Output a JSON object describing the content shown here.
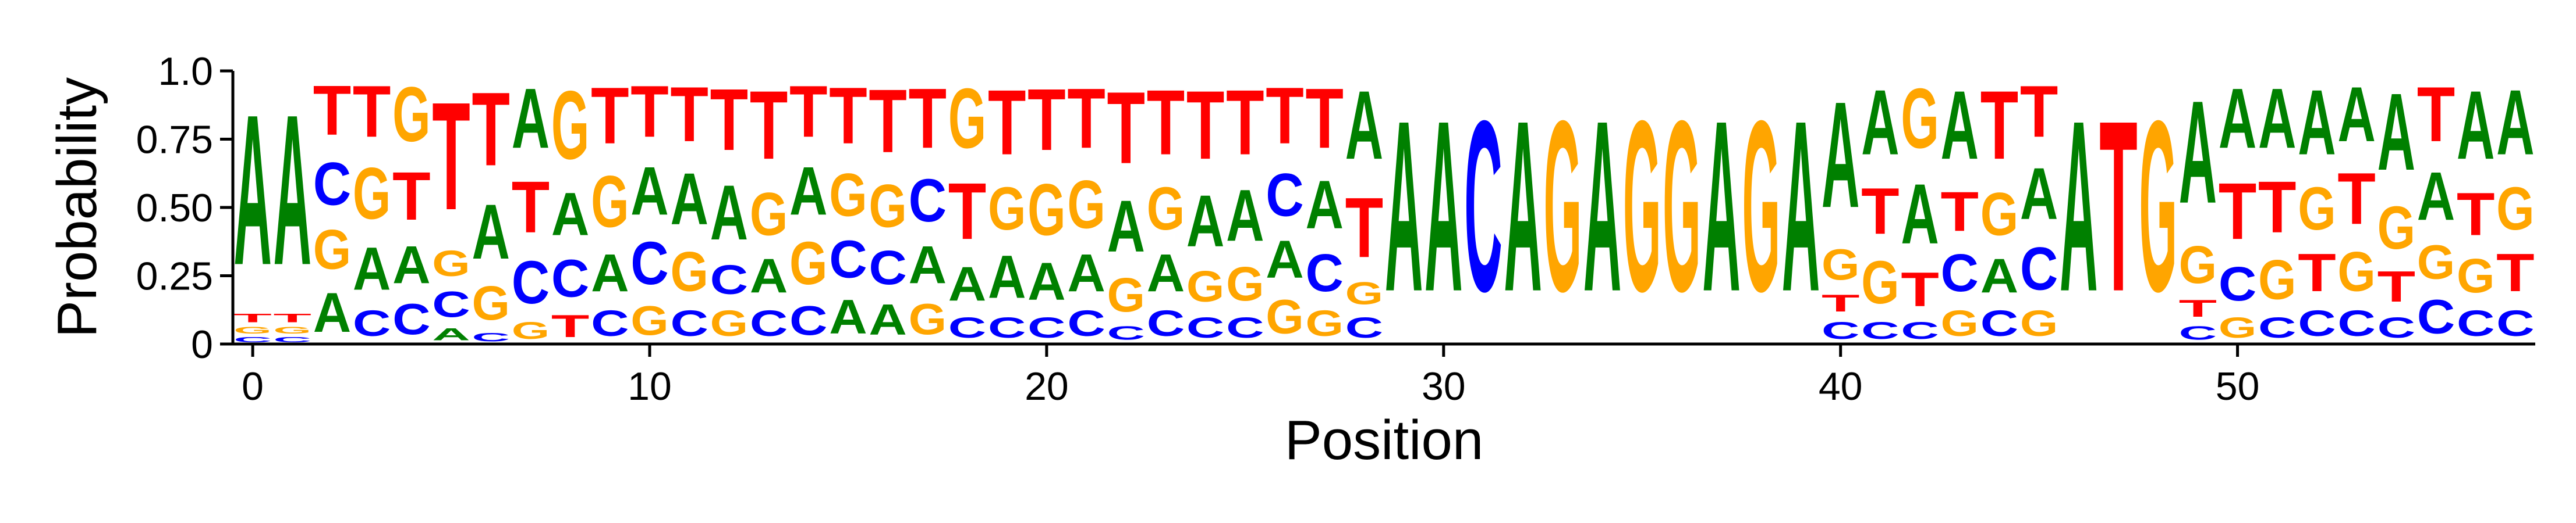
{
  "chart_data": {
    "type": "sequence-logo",
    "xlabel": "Position",
    "ylabel": "Probability",
    "xlim": [
      -0.5,
      57.5
    ],
    "ylim": [
      0,
      1
    ],
    "x_ticks": [
      0,
      10,
      20,
      30,
      40,
      50
    ],
    "x_tick_labels": [
      "0",
      "10",
      "20",
      "30",
      "40",
      "50"
    ],
    "y_ticks": [
      0,
      0.25,
      0.5,
      0.75,
      1.0
    ],
    "y_tick_labels": [
      "0",
      "0.25",
      "0.50",
      "0.75",
      "1.0"
    ],
    "grid": false,
    "colors": {
      "A": "#008000",
      "C": "#0000ff",
      "G": "#ffa500",
      "T": "#ff0000"
    },
    "alphabet": [
      "A",
      "C",
      "G",
      "T"
    ],
    "positions": [
      {
        "x": 0,
        "A": 0.88,
        "C": 0.03,
        "G": 0.04,
        "T": 0.05
      },
      {
        "x": 1,
        "A": 0.88,
        "C": 0.03,
        "G": 0.04,
        "T": 0.05
      },
      {
        "x": 2,
        "A": 0.23,
        "C": 0.25,
        "G": 0.23,
        "T": 0.29
      },
      {
        "x": 3,
        "A": 0.25,
        "C": 0.15,
        "G": 0.3,
        "T": 0.3
      },
      {
        "x": 4,
        "A": 0.22,
        "C": 0.18,
        "G": 0.32,
        "T": 0.28
      },
      {
        "x": 5,
        "A": 0.07,
        "C": 0.15,
        "G": 0.15,
        "T": 0.63
      },
      {
        "x": 6,
        "A": 0.32,
        "C": 0.05,
        "G": 0.2,
        "T": 0.43
      },
      {
        "x": 7,
        "A": 0.35,
        "C": 0.25,
        "G": 0.1,
        "T": 0.3
      },
      {
        "x": 8,
        "A": 0.25,
        "C": 0.22,
        "G": 0.4,
        "T": 0.13
      },
      {
        "x": 9,
        "A": 0.22,
        "C": 0.15,
        "G": 0.3,
        "T": 0.33
      },
      {
        "x": 10,
        "A": 0.28,
        "C": 0.25,
        "G": 0.17,
        "T": 0.3
      },
      {
        "x": 11,
        "A": 0.3,
        "C": 0.15,
        "G": 0.23,
        "T": 0.32
      },
      {
        "x": 12,
        "A": 0.32,
        "C": 0.17,
        "G": 0.15,
        "T": 0.36
      },
      {
        "x": 13,
        "A": 0.2,
        "C": 0.15,
        "G": 0.25,
        "T": 0.4
      },
      {
        "x": 14,
        "A": 0.28,
        "C": 0.17,
        "G": 0.25,
        "T": 0.3
      },
      {
        "x": 15,
        "A": 0.2,
        "C": 0.22,
        "G": 0.25,
        "T": 0.33
      },
      {
        "x": 16,
        "A": 0.18,
        "C": 0.2,
        "G": 0.25,
        "T": 0.37
      },
      {
        "x": 17,
        "A": 0.22,
        "C": 0.25,
        "G": 0.18,
        "T": 0.35
      },
      {
        "x": 18,
        "A": 0.2,
        "C": 0.12,
        "G": 0.35,
        "T": 0.33
      },
      {
        "x": 19,
        "A": 0.25,
        "C": 0.12,
        "G": 0.25,
        "T": 0.38
      },
      {
        "x": 20,
        "A": 0.22,
        "C": 0.12,
        "G": 0.3,
        "T": 0.36
      },
      {
        "x": 21,
        "A": 0.22,
        "C": 0.15,
        "G": 0.28,
        "T": 0.35
      },
      {
        "x": 22,
        "A": 0.3,
        "C": 0.08,
        "G": 0.2,
        "T": 0.42
      },
      {
        "x": 23,
        "A": 0.22,
        "C": 0.15,
        "G": 0.25,
        "T": 0.38
      },
      {
        "x": 24,
        "A": 0.3,
        "C": 0.12,
        "G": 0.18,
        "T": 0.4
      },
      {
        "x": 25,
        "A": 0.3,
        "C": 0.12,
        "G": 0.2,
        "T": 0.38
      },
      {
        "x": 26,
        "A": 0.22,
        "C": 0.25,
        "G": 0.2,
        "T": 0.33
      },
      {
        "x": 27,
        "A": 0.28,
        "C": 0.22,
        "G": 0.15,
        "T": 0.35
      },
      {
        "x": 28,
        "A": 0.4,
        "C": 0.12,
        "G": 0.13,
        "T": 0.35
      },
      {
        "x": 29,
        "A": 1.0,
        "C": 0.0,
        "G": 0.0,
        "T": 0.0
      },
      {
        "x": 30,
        "A": 1.0,
        "C": 0.0,
        "G": 0.0,
        "T": 0.0
      },
      {
        "x": 31,
        "A": 0.0,
        "C": 1.0,
        "G": 0.0,
        "T": 0.0
      },
      {
        "x": 32,
        "A": 1.0,
        "C": 0.0,
        "G": 0.0,
        "T": 0.0
      },
      {
        "x": 33,
        "A": 0.0,
        "C": 0.0,
        "G": 1.0,
        "T": 0.0
      },
      {
        "x": 34,
        "A": 1.0,
        "C": 0.0,
        "G": 0.0,
        "T": 0.0
      },
      {
        "x": 35,
        "A": 0.0,
        "C": 0.0,
        "G": 1.0,
        "T": 0.0
      },
      {
        "x": 36,
        "A": 0.0,
        "C": 0.0,
        "G": 1.0,
        "T": 0.0
      },
      {
        "x": 37,
        "A": 1.0,
        "C": 0.0,
        "G": 0.0,
        "T": 0.0
      },
      {
        "x": 38,
        "A": 0.0,
        "C": 0.0,
        "G": 1.0,
        "T": 0.0
      },
      {
        "x": 39,
        "A": 1.0,
        "C": 0.0,
        "G": 0.0,
        "T": 0.0
      },
      {
        "x": 40,
        "A": 0.62,
        "C": 0.1,
        "G": 0.18,
        "T": 0.1
      },
      {
        "x": 41,
        "A": 0.38,
        "C": 0.1,
        "G": 0.25,
        "T": 0.27
      },
      {
        "x": 42,
        "A": 0.35,
        "C": 0.1,
        "G": 0.35,
        "T": 0.2
      },
      {
        "x": 43,
        "A": 0.4,
        "C": 0.22,
        "G": 0.15,
        "T": 0.23
      },
      {
        "x": 44,
        "A": 0.2,
        "C": 0.15,
        "G": 0.25,
        "T": 0.4
      },
      {
        "x": 45,
        "A": 0.3,
        "C": 0.25,
        "G": 0.15,
        "T": 0.3
      },
      {
        "x": 46,
        "A": 1.0,
        "C": 0.0,
        "G": 0.0,
        "T": 0.0
      },
      {
        "x": 47,
        "A": 0.0,
        "C": 0.0,
        "G": 0.0,
        "T": 1.0
      },
      {
        "x": 48,
        "A": 0.0,
        "C": 0.0,
        "G": 1.0,
        "T": 0.0
      },
      {
        "x": 49,
        "A": 0.6,
        "C": 0.08,
        "G": 0.22,
        "T": 0.1
      },
      {
        "x": 50,
        "A": 0.35,
        "C": 0.2,
        "G": 0.12,
        "T": 0.33
      },
      {
        "x": 51,
        "A": 0.35,
        "C": 0.12,
        "G": 0.23,
        "T": 0.3
      },
      {
        "x": 52,
        "A": 0.38,
        "C": 0.15,
        "G": 0.25,
        "T": 0.22
      },
      {
        "x": 53,
        "A": 0.32,
        "C": 0.15,
        "G": 0.23,
        "T": 0.3
      },
      {
        "x": 54,
        "A": 0.45,
        "C": 0.12,
        "G": 0.25,
        "T": 0.18
      },
      {
        "x": 55,
        "A": 0.28,
        "C": 0.2,
        "G": 0.2,
        "T": 0.32
      },
      {
        "x": 56,
        "A": 0.4,
        "C": 0.15,
        "G": 0.2,
        "T": 0.25
      },
      {
        "x": 57,
        "A": 0.38,
        "C": 0.15,
        "G": 0.25,
        "T": 0.22
      }
    ]
  }
}
